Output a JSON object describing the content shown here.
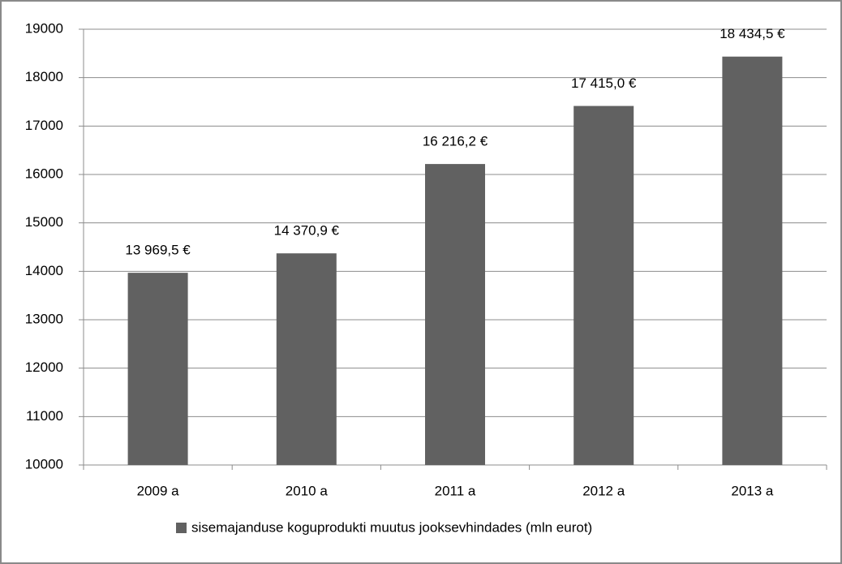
{
  "chart_data": {
    "type": "bar",
    "categories": [
      "2009 a",
      "2010 a",
      "2011 a",
      "2012 a",
      "2013 a"
    ],
    "series": [
      {
        "name": "sisemajanduse koguprodukti muutus jooksevhindades (mln eurot)",
        "color": "#616161",
        "values": [
          13969.5,
          14370.9,
          16216.2,
          17415.0,
          18434.5
        ],
        "value_labels": [
          "13 969,5 €",
          "14 370,9 €",
          "16 216,2 €",
          "17 415,0 €",
          "18 434,5 €"
        ]
      }
    ],
    "ylim": [
      10000,
      19000
    ],
    "yticks": [
      10000,
      11000,
      12000,
      13000,
      14000,
      15000,
      16000,
      17000,
      18000,
      19000
    ],
    "grid": true,
    "legend": "bottom"
  }
}
